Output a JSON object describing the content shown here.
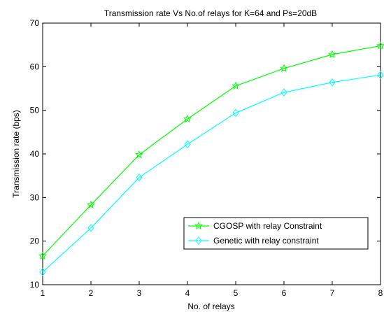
{
  "chart_data": {
    "type": "line",
    "title": "Transmission rate Vs No.of relays for K=64 and Ps=20dB",
    "xlabel": "No. of relays",
    "ylabel": "Transmission rate (bps)",
    "x": [
      1,
      2,
      3,
      4,
      5,
      6,
      7,
      8
    ],
    "xlim": [
      1,
      8
    ],
    "ylim": [
      10,
      70
    ],
    "xticks": [
      1,
      2,
      3,
      4,
      5,
      6,
      7,
      8
    ],
    "yticks": [
      10,
      20,
      30,
      40,
      50,
      60,
      70
    ],
    "grid": false,
    "legend_position": "bottom-right",
    "series": [
      {
        "name": "CGOSP with relay Constraint",
        "color": "#00ff00",
        "marker": "star",
        "values": [
          16.6,
          28.3,
          39.8,
          48.0,
          55.6,
          59.6,
          62.8,
          64.8
        ]
      },
      {
        "name": "Genetic with relay constraint",
        "color": "#00ffff",
        "marker": "diamond",
        "values": [
          12.9,
          23.0,
          34.6,
          42.2,
          49.4,
          54.1,
          56.4,
          58.1
        ]
      }
    ]
  }
}
